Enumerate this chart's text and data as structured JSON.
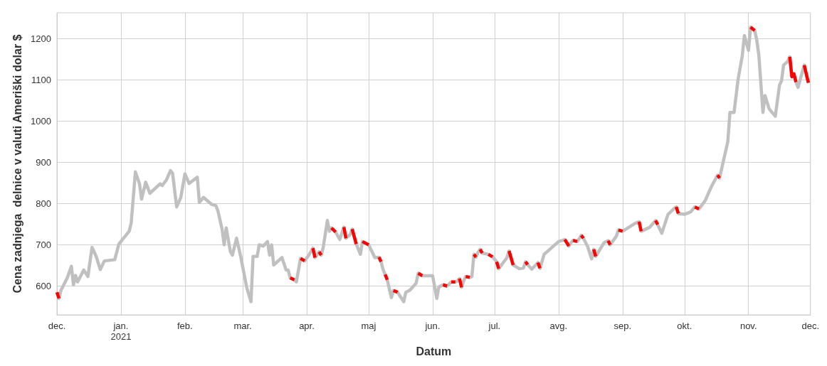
{
  "chart_data": {
    "type": "line",
    "xlabel": "Datum",
    "ylabel": "Cena zadnjega  delnice v valuti Ameriški dolar $",
    "x": [
      "2020-12-01",
      "2020-12-02",
      "2020-12-03",
      "2020-12-06",
      "2020-12-08",
      "2020-12-09",
      "2020-12-10",
      "2020-12-11",
      "2020-12-14",
      "2020-12-16",
      "2020-12-18",
      "2020-12-20",
      "2020-12-22",
      "2020-12-24",
      "2020-12-29",
      "2020-12-31",
      "2021-01-05",
      "2021-01-06",
      "2021-01-08",
      "2021-01-10",
      "2021-01-11",
      "2021-01-13",
      "2021-01-15",
      "2021-01-20",
      "2021-01-21",
      "2021-01-23",
      "2021-01-25",
      "2021-01-26",
      "2021-01-28",
      "2021-01-30",
      "2021-02-01",
      "2021-02-03",
      "2021-02-07",
      "2021-02-08",
      "2021-02-10",
      "2021-02-14",
      "2021-02-16",
      "2021-02-17",
      "2021-02-19",
      "2021-02-20",
      "2021-02-21",
      "2021-02-23",
      "2021-02-24",
      "2021-02-26",
      "2021-02-28",
      "2021-03-03",
      "2021-03-05",
      "2021-03-06",
      "2021-03-08",
      "2021-03-09",
      "2021-03-11",
      "2021-03-13",
      "2021-03-14",
      "2021-03-15",
      "2021-03-16",
      "2021-03-20",
      "2021-03-22",
      "2021-03-23",
      "2021-03-24",
      "2021-03-26",
      "2021-03-27",
      "2021-03-29",
      "2021-03-31",
      "2021-04-02",
      "2021-04-04",
      "2021-04-05",
      "2021-04-06",
      "2021-04-07",
      "2021-04-08",
      "2021-04-09",
      "2021-04-11",
      "2021-04-12",
      "2021-04-13",
      "2021-04-15",
      "2021-04-17",
      "2021-04-19",
      "2021-04-20",
      "2021-04-22",
      "2021-04-23",
      "2021-04-25",
      "2021-04-27",
      "2021-04-28",
      "2021-05-01",
      "2021-05-04",
      "2021-05-06",
      "2021-05-07",
      "2021-05-08",
      "2021-05-09",
      "2021-05-10",
      "2021-05-12",
      "2021-05-13",
      "2021-05-15",
      "2021-05-18",
      "2021-05-19",
      "2021-05-21",
      "2021-05-24",
      "2021-05-25",
      "2021-05-27",
      "2021-06-01",
      "2021-06-03",
      "2021-06-04",
      "2021-06-06",
      "2021-06-08",
      "2021-06-09",
      "2021-06-10",
      "2021-06-12",
      "2021-06-13",
      "2021-06-14",
      "2021-06-15",
      "2021-06-16",
      "2021-06-17",
      "2021-06-19",
      "2021-06-20",
      "2021-06-21",
      "2021-06-22",
      "2021-06-23",
      "2021-06-24",
      "2021-06-25",
      "2021-06-27",
      "2021-06-28",
      "2021-06-30",
      "2021-07-01",
      "2021-07-02",
      "2021-07-03",
      "2021-07-07",
      "2021-07-08",
      "2021-07-10",
      "2021-07-13",
      "2021-07-15",
      "2021-07-16",
      "2021-07-17",
      "2021-07-19",
      "2021-07-22",
      "2021-07-23",
      "2021-07-25",
      "2021-08-01",
      "2021-08-03",
      "2021-08-04",
      "2021-08-06",
      "2021-08-07",
      "2021-08-08",
      "2021-08-10",
      "2021-08-11",
      "2021-08-12",
      "2021-08-13",
      "2021-08-15",
      "2021-08-17",
      "2021-08-18",
      "2021-08-19",
      "2021-08-23",
      "2021-08-25",
      "2021-08-26",
      "2021-08-29",
      "2021-08-30",
      "2021-09-01",
      "2021-09-07",
      "2021-09-09",
      "2021-09-10",
      "2021-09-14",
      "2021-09-17",
      "2021-09-18",
      "2021-09-20",
      "2021-09-23",
      "2021-09-26",
      "2021-09-27",
      "2021-09-28",
      "2021-10-01",
      "2021-10-04",
      "2021-10-06",
      "2021-10-08",
      "2021-10-11",
      "2021-10-14",
      "2021-10-17",
      "2021-10-18",
      "2021-10-20",
      "2021-10-22",
      "2021-10-23",
      "2021-10-25",
      "2021-10-27",
      "2021-10-29",
      "2021-10-30",
      "2021-11-01",
      "2021-11-02",
      "2021-11-04",
      "2021-11-05",
      "2021-11-06",
      "2021-11-08",
      "2021-11-09",
      "2021-11-11",
      "2021-11-14",
      "2021-11-16",
      "2021-11-17",
      "2021-11-18",
      "2021-11-20",
      "2021-11-21",
      "2021-11-22",
      "2021-11-23",
      "2021-11-24",
      "2021-11-25",
      "2021-11-28",
      "2021-11-30"
    ],
    "series": [
      {
        "color": "#c0c0c0",
        "values": [
          585,
          570,
          590,
          620,
          648,
          603,
          626,
          610,
          639,
          623,
          694,
          672,
          640,
          661,
          664,
          702,
          733,
          754,
          877,
          848,
          811,
          852,
          825,
          848,
          844,
          857,
          880,
          874,
          792,
          815,
          872,
          849,
          864,
          803,
          815,
          798,
          795,
          782,
          738,
          700,
          741,
          684,
          675,
          716,
          672,
          595,
          562,
          672,
          672,
          700,
          697,
          708,
          675,
          700,
          651,
          669,
          639,
          639,
          620,
          615,
          610,
          667,
          661,
          675,
          692,
          669,
          676,
          683,
          675,
          694,
          759,
          733,
          741,
          731,
          713,
          743,
          716,
          725,
          738,
          702,
          677,
          708,
          700,
          669,
          670,
          659,
          640,
          628,
          615,
          572,
          589,
          585,
          562,
          585,
          590,
          607,
          631,
          625,
          625,
          570,
          598,
          603,
          600,
          605,
          610,
          610,
          612,
          618,
          597,
          612,
          623,
          621,
          623,
          677,
          670,
          682,
          689,
          680,
          678,
          677,
          671,
          665,
          659,
          642,
          669,
          685,
          651,
          642,
          644,
          659,
          652,
          641,
          657,
          643,
          677,
          708,
          711,
          713,
          697,
          705,
          711,
          708,
          715,
          723,
          716,
          697,
          666,
          689,
          672,
          705,
          710,
          700,
          721,
          736,
          733,
          752,
          756,
          733,
          742,
          759,
          749,
          728,
          774,
          788,
          792,
          776,
          774,
          780,
          792,
          787,
          807,
          841,
          869,
          862,
          907,
          951,
          1021,
          1021,
          1103,
          1159,
          1208,
          1172,
          1228,
          1220,
          1197,
          1161,
          1021,
          1062,
          1030,
          1012,
          1087,
          1098,
          1136,
          1145,
          1156,
          1108,
          1115,
          1095,
          1082,
          1136,
          1093
        ]
      },
      {
        "color": "#ff0000",
        "values": [
          585,
          570,
          null,
          null,
          null,
          null,
          null,
          null,
          null,
          null,
          null,
          null,
          null,
          null,
          null,
          null,
          null,
          null,
          null,
          null,
          null,
          null,
          null,
          null,
          null,
          null,
          null,
          null,
          null,
          null,
          null,
          null,
          null,
          null,
          null,
          null,
          null,
          null,
          null,
          null,
          null,
          null,
          null,
          null,
          null,
          null,
          null,
          null,
          null,
          null,
          null,
          null,
          null,
          null,
          null,
          null,
          null,
          null,
          620,
          615,
          null,
          667,
          661,
          null,
          692,
          669,
          null,
          683,
          675,
          null,
          null,
          null,
          741,
          731,
          null,
          743,
          716,
          null,
          738,
          702,
          null,
          708,
          700,
          null,
          670,
          659,
          null,
          628,
          615,
          null,
          589,
          585,
          null,
          null,
          null,
          null,
          631,
          625,
          null,
          null,
          null,
          603,
          600,
          null,
          610,
          610,
          null,
          618,
          597,
          null,
          623,
          621,
          null,
          677,
          670,
          null,
          689,
          680,
          null,
          677,
          671,
          null,
          659,
          642,
          null,
          685,
          651,
          null,
          null,
          659,
          652,
          null,
          657,
          643,
          null,
          null,
          null,
          713,
          697,
          null,
          711,
          708,
          null,
          723,
          716,
          null,
          null,
          689,
          672,
          null,
          710,
          700,
          null,
          736,
          733,
          null,
          756,
          733,
          null,
          759,
          749,
          null,
          null,
          null,
          792,
          776,
          null,
          null,
          792,
          787,
          null,
          null,
          869,
          862,
          null,
          null,
          null,
          null,
          null,
          null,
          null,
          null,
          1228,
          1220,
          null,
          null,
          null,
          null,
          null,
          null,
          null,
          null,
          null,
          null,
          1156,
          1108,
          1115,
          1095,
          null,
          1136,
          1093
        ]
      }
    ],
    "xlim": [
      "2020-12-01",
      "2021-12-01"
    ],
    "xticks": [
      {
        "value": "2020-12-01",
        "label": "dec."
      },
      {
        "value": "2021-01-01",
        "label": "jan.\n2021"
      },
      {
        "value": "2021-02-01",
        "label": "feb."
      },
      {
        "value": "2021-03-01",
        "label": "mar."
      },
      {
        "value": "2021-04-01",
        "label": "apr."
      },
      {
        "value": "2021-05-01",
        "label": "maj"
      },
      {
        "value": "2021-06-01",
        "label": "jun."
      },
      {
        "value": "2021-07-01",
        "label": "jul."
      },
      {
        "value": "2021-08-01",
        "label": "avg."
      },
      {
        "value": "2021-09-01",
        "label": "sep."
      },
      {
        "value": "2021-10-01",
        "label": "okt."
      },
      {
        "value": "2021-11-01",
        "label": "nov."
      },
      {
        "value": "2021-12-01",
        "label": "dec."
      }
    ],
    "ylim": [
      530,
      1263
    ],
    "yticks": [
      600,
      700,
      800,
      900,
      1000,
      1100,
      1200
    ],
    "grid": true,
    "line_style": "solid"
  }
}
